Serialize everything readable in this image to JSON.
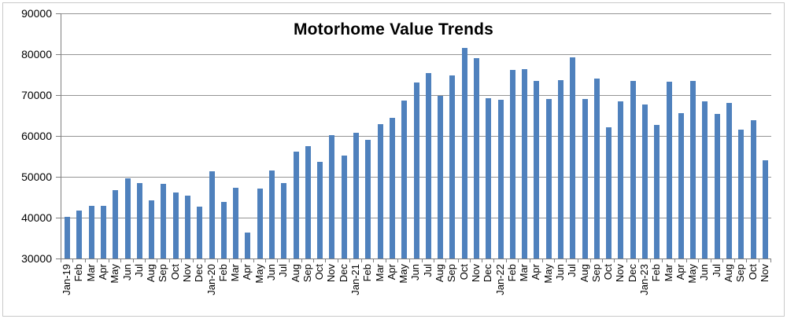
{
  "chart_data": {
    "type": "bar",
    "title": "Motorhome Value Trends",
    "xlabel": "",
    "ylabel": "",
    "ylim": [
      30000,
      90000
    ],
    "ytick_step": 10000,
    "ytick_labels": [
      "90000",
      "80000",
      "70000",
      "60000",
      "50000",
      "40000",
      "30000"
    ],
    "grid": "horizontal",
    "legend": "none",
    "categories": [
      "Jan-19",
      "Feb",
      "Mar",
      "Apr",
      "May",
      "Jun",
      "Jul",
      "Aug",
      "Sep",
      "Oct",
      "Nov",
      "Dec",
      "Jan-20",
      "Feb",
      "Mar",
      "Apr",
      "May",
      "Jun",
      "Jul",
      "Aug",
      "Sep",
      "Oct",
      "Nov",
      "Dec",
      "Jan-21",
      "Feb",
      "Mar",
      "Apr",
      "May",
      "Jun",
      "Jul",
      "Aug",
      "Sep",
      "Oct",
      "Nov",
      "Dec",
      "Jan-22",
      "Feb",
      "Mar",
      "Apr",
      "May",
      "Jun",
      "Jul",
      "Aug",
      "Sep",
      "Oct",
      "Nov",
      "Dec",
      "Jan-23",
      "Feb",
      "Mar",
      "Apr",
      "May",
      "Jun",
      "Jul",
      "Aug",
      "Sep",
      "Oct",
      "Nov"
    ],
    "values": [
      40100,
      41800,
      42800,
      42800,
      46700,
      49700,
      48500,
      44200,
      48300,
      46200,
      45400,
      42600,
      51400,
      43900,
      47400,
      36400,
      47200,
      51500,
      48400,
      56200,
      57500,
      53700,
      60100,
      55100,
      60700,
      59100,
      62900,
      64500,
      68600,
      73100,
      75400,
      69800,
      74800,
      81500,
      79000,
      69200,
      68800,
      76200,
      76300,
      73400,
      69000,
      73600,
      79300,
      69000,
      74000,
      62100,
      68400,
      73400,
      67600,
      62700,
      73300,
      65500,
      73400,
      68400,
      65300,
      68100,
      61500,
      63900,
      54000
    ],
    "colors": {
      "bar": "#4F81BD",
      "gridline": "#949494",
      "axis": "#7F7F7F",
      "text": "#000000",
      "background": "#FFFFFF",
      "frame_border": "#C9C9C9"
    }
  }
}
